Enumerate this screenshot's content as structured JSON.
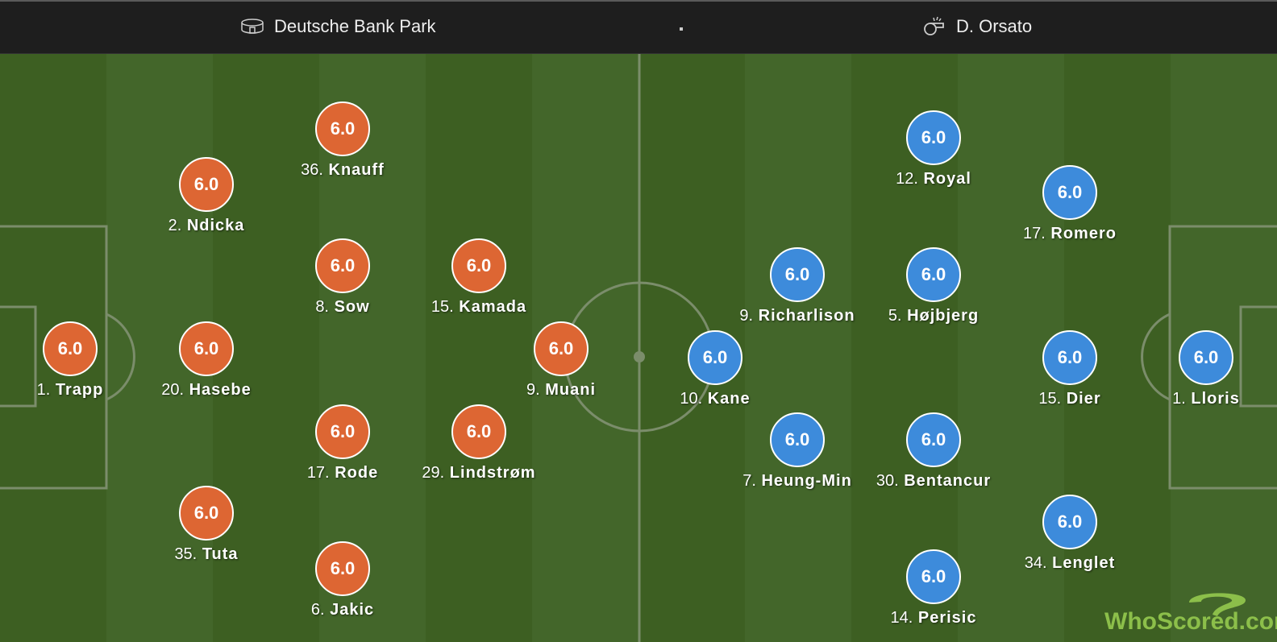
{
  "header": {
    "venue": "Deutsche Bank Park",
    "venue_icon": "stadium-icon",
    "referee": "D. Orsato",
    "referee_icon": "whistle-icon"
  },
  "colors": {
    "home": "#dd6633",
    "away": "#3d8bdb",
    "pitch_light": "#43662a",
    "pitch_dark": "#3d5f22",
    "lines": "#7b8d6b"
  },
  "home": [
    {
      "num": "1.",
      "name": "Trapp",
      "rating": "6.0"
    },
    {
      "num": "2.",
      "name": "Ndicka",
      "rating": "6.0"
    },
    {
      "num": "20.",
      "name": "Hasebe",
      "rating": "6.0"
    },
    {
      "num": "35.",
      "name": "Tuta",
      "rating": "6.0"
    },
    {
      "num": "36.",
      "name": "Knauff",
      "rating": "6.0"
    },
    {
      "num": "8.",
      "name": "Sow",
      "rating": "6.0"
    },
    {
      "num": "17.",
      "name": "Rode",
      "rating": "6.0"
    },
    {
      "num": "6.",
      "name": "Jakic",
      "rating": "6.0"
    },
    {
      "num": "15.",
      "name": "Kamada",
      "rating": "6.0"
    },
    {
      "num": "29.",
      "name": "Lindstrøm",
      "rating": "6.0"
    },
    {
      "num": "9.",
      "name": "Muani",
      "rating": "6.0"
    }
  ],
  "away": [
    {
      "num": "10.",
      "name": "Kane",
      "rating": "6.0"
    },
    {
      "num": "9.",
      "name": "Richarlison",
      "rating": "6.0"
    },
    {
      "num": "7.",
      "name": "Heung-Min",
      "rating": "6.0"
    },
    {
      "num": "12.",
      "name": "Royal",
      "rating": "6.0"
    },
    {
      "num": "5.",
      "name": "Højbjerg",
      "rating": "6.0"
    },
    {
      "num": "30.",
      "name": "Bentancur",
      "rating": "6.0"
    },
    {
      "num": "14.",
      "name": "Perisic",
      "rating": "6.0"
    },
    {
      "num": "17.",
      "name": "Romero",
      "rating": "6.0"
    },
    {
      "num": "15.",
      "name": "Dier",
      "rating": "6.0"
    },
    {
      "num": "34.",
      "name": "Lenglet",
      "rating": "6.0"
    },
    {
      "num": "1.",
      "name": "Lloris",
      "rating": "6.0"
    }
  ],
  "watermark": "WhoScored.com"
}
